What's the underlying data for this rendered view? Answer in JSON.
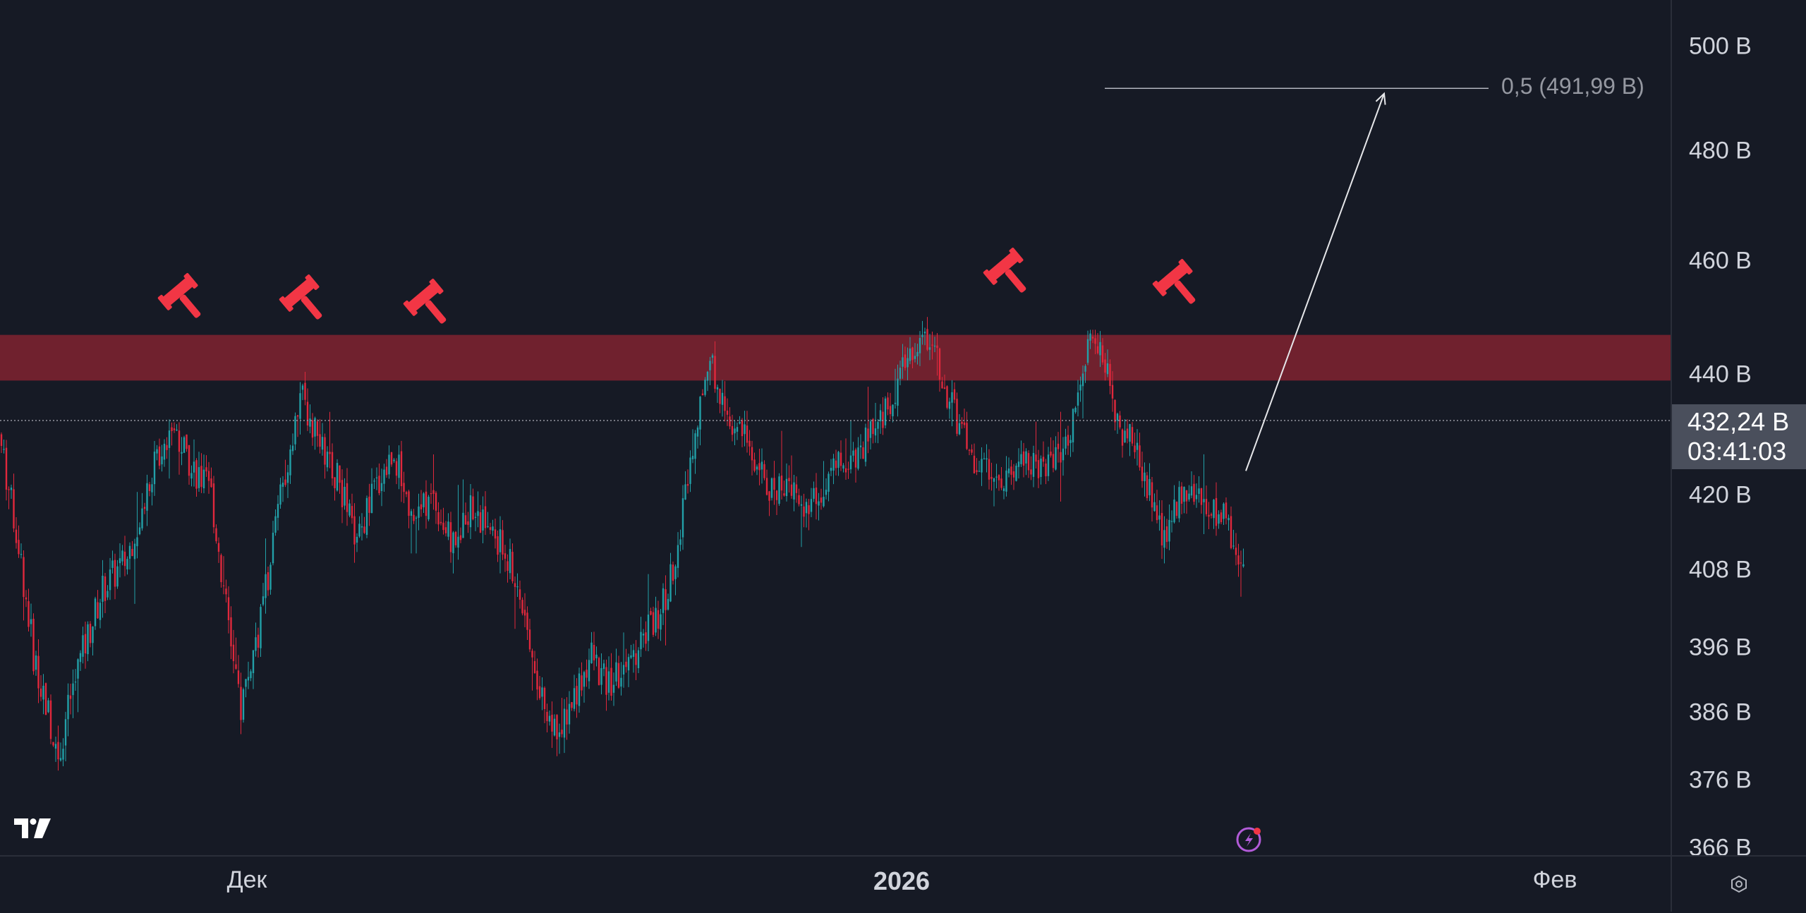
{
  "chart_data": {
    "type": "candlestick",
    "y_axis": {
      "ticks": [
        {
          "label": "500 B",
          "value": 500
        },
        {
          "label": "480 B",
          "value": 480
        },
        {
          "label": "460 B",
          "value": 460
        },
        {
          "label": "440 B",
          "value": 440
        },
        {
          "label": "420 B",
          "value": 420
        },
        {
          "label": "408 B",
          "value": 408
        },
        {
          "label": "396 B",
          "value": 396
        },
        {
          "label": "386 B",
          "value": 386
        },
        {
          "label": "376 B",
          "value": 376
        },
        {
          "label": "366 B",
          "value": 366
        }
      ]
    },
    "x_axis": {
      "labels": [
        {
          "label": "Дек",
          "bold": false
        },
        {
          "label": "2026",
          "bold": true
        },
        {
          "label": "Фев",
          "bold": false
        }
      ]
    },
    "current_price": {
      "price_label": "432,24 B",
      "countdown": "03:41:03",
      "value": 432.24
    },
    "resistance_zone": {
      "low": 439,
      "high": 447,
      "color": "#78222f"
    },
    "fib_level": {
      "label": "0,5 (491,99 B)",
      "value": 491.99
    },
    "projection_arrow": {
      "from_value": 424,
      "to_value": 491
    },
    "rejection_markers": {
      "count": 5,
      "icon": "gavel-icon",
      "color": "#f23645"
    },
    "colors": {
      "up": "#22a0a8",
      "down": "#e0283c",
      "background": "#161a25"
    },
    "series_path": [
      [
        0,
        430
      ],
      [
        8,
        412
      ],
      [
        14,
        395
      ],
      [
        24,
        380
      ],
      [
        32,
        393
      ],
      [
        42,
        405
      ],
      [
        52,
        410
      ],
      [
        60,
        422
      ],
      [
        70,
        432
      ],
      [
        78,
        425
      ],
      [
        86,
        420
      ],
      [
        92,
        402
      ],
      [
        98,
        387
      ],
      [
        106,
        400
      ],
      [
        114,
        420
      ],
      [
        122,
        437
      ],
      [
        130,
        428
      ],
      [
        138,
        422
      ],
      [
        145,
        412
      ],
      [
        152,
        421
      ],
      [
        160,
        427
      ],
      [
        168,
        416
      ],
      [
        176,
        420
      ],
      [
        183,
        412
      ],
      [
        190,
        418
      ],
      [
        198,
        415
      ],
      [
        206,
        410
      ],
      [
        214,
        400
      ],
      [
        220,
        388
      ],
      [
        226,
        383
      ],
      [
        232,
        388
      ],
      [
        240,
        395
      ],
      [
        246,
        390
      ],
      [
        252,
        392
      ],
      [
        258,
        395
      ],
      [
        264,
        400
      ],
      [
        270,
        403
      ],
      [
        276,
        415
      ],
      [
        282,
        432
      ],
      [
        288,
        443
      ],
      [
        292,
        437
      ],
      [
        298,
        431
      ],
      [
        304,
        428
      ],
      [
        312,
        421
      ],
      [
        320,
        422
      ],
      [
        328,
        417
      ],
      [
        336,
        423
      ],
      [
        344,
        426
      ],
      [
        352,
        429
      ],
      [
        360,
        434
      ],
      [
        370,
        445
      ],
      [
        378,
        447
      ],
      [
        382,
        439
      ],
      [
        388,
        432
      ],
      [
        394,
        426
      ],
      [
        400,
        424
      ],
      [
        408,
        423
      ],
      [
        416,
        426
      ],
      [
        424,
        425
      ],
      [
        432,
        428
      ],
      [
        440,
        443
      ],
      [
        444,
        447
      ],
      [
        448,
        441
      ],
      [
        454,
        431
      ],
      [
        460,
        428
      ],
      [
        466,
        421
      ],
      [
        472,
        412
      ],
      [
        476,
        418
      ],
      [
        480,
        422
      ],
      [
        488,
        419
      ],
      [
        496,
        416
      ],
      [
        504,
        410
      ]
    ]
  }
}
